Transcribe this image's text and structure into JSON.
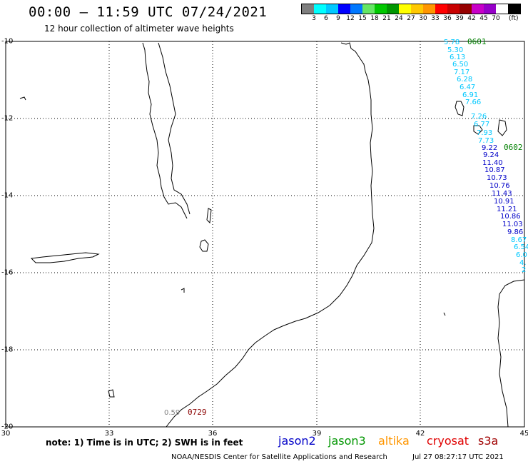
{
  "header": {
    "title": "00:00 — 11:59 UTC 07/24/2021",
    "subtitle": "12 hour collection of altimeter wave heights"
  },
  "legend": {
    "colors": [
      "#7f7f7f",
      "#00ffff",
      "#00c8ff",
      "#0000ff",
      "#0078ff",
      "#64e664",
      "#00c800",
      "#009600",
      "#ffff00",
      "#ffc800",
      "#ff9600",
      "#ff0000",
      "#c80000",
      "#960000",
      "#c800c8",
      "#9600c8",
      "#ffffff",
      "#000000"
    ],
    "ticks": [
      "3",
      "6",
      "9",
      "12",
      "15",
      "18",
      "21",
      "24",
      "27",
      "30",
      "33",
      "36",
      "39",
      "42",
      "45",
      "70"
    ],
    "unit": "(ft)"
  },
  "axes": {
    "lat_labels": [
      "-10",
      "-12",
      "-14",
      "-16",
      "-18",
      "-20"
    ],
    "lon_labels": [
      "30",
      "33",
      "36",
      "39",
      "42",
      "45"
    ]
  },
  "passes": [
    {
      "id": "0601",
      "color": "#008000",
      "values": [
        {
          "v": "5.78",
          "c": "#00c8ff"
        },
        {
          "v": "5.30",
          "c": "#00c8ff"
        },
        {
          "v": "6.13",
          "c": "#00c8ff"
        },
        {
          "v": "6.50",
          "c": "#00c8ff"
        },
        {
          "v": "7.17",
          "c": "#00c8ff"
        },
        {
          "v": "6.28",
          "c": "#00c8ff"
        },
        {
          "v": "6.47",
          "c": "#00c8ff"
        },
        {
          "v": "6.91",
          "c": "#00c8ff"
        },
        {
          "v": "7.66",
          "c": "#00c8ff"
        },
        {
          "v": "7.26",
          "c": "#00c8ff"
        },
        {
          "v": "6.77",
          "c": "#00c8ff"
        },
        {
          "v": "7.93",
          "c": "#00c8ff"
        },
        {
          "v": "7.73",
          "c": "#00c8ff"
        }
      ]
    },
    {
      "id": "0602",
      "color": "#008000",
      "values": [
        {
          "v": "9.22",
          "c": "#0000c8"
        },
        {
          "v": "9.24",
          "c": "#0000c8"
        },
        {
          "v": "11.40",
          "c": "#0000c8"
        },
        {
          "v": "10.87",
          "c": "#0000c8"
        },
        {
          "v": "10.73",
          "c": "#0000c8"
        },
        {
          "v": "10.76",
          "c": "#0000c8"
        },
        {
          "v": "11.43",
          "c": "#0000c8"
        },
        {
          "v": "10.91",
          "c": "#0000c8"
        },
        {
          "v": "11.21",
          "c": "#0000c8"
        },
        {
          "v": "10.86",
          "c": "#0000c8"
        },
        {
          "v": "11.03",
          "c": "#0000c8"
        },
        {
          "v": "9.86",
          "c": "#0000c8"
        },
        {
          "v": "8.67",
          "c": "#00c8ff"
        },
        {
          "v": "6.54",
          "c": "#00c8ff"
        },
        {
          "v": "6.0",
          "c": "#00c8ff"
        },
        {
          "v": "4.",
          "c": "#00c8ff"
        },
        {
          "v": "2",
          "c": "#00c8ff"
        }
      ]
    },
    {
      "id": "0729",
      "color": "#8b0000",
      "values": [
        {
          "v": "0.59",
          "c": "#7f7f7f"
        }
      ]
    }
  ],
  "footer": {
    "note": "note:  1) Time is in UTC;  2) SWH is in feet",
    "satellites": [
      {
        "name": "jason2",
        "color": "#0000c8"
      },
      {
        "name": "jason3",
        "color": "#009600"
      },
      {
        "name": "altika",
        "color": "#ff9600"
      },
      {
        "name": "cryosat",
        "color": "#e00000"
      },
      {
        "name": "s3a",
        "color": "#a00000"
      }
    ],
    "credit": "NOAA/NESDIS Center for Satellite Applications and Research",
    "timestamp": "Jul 27 08:27:17 UTC 2021"
  }
}
